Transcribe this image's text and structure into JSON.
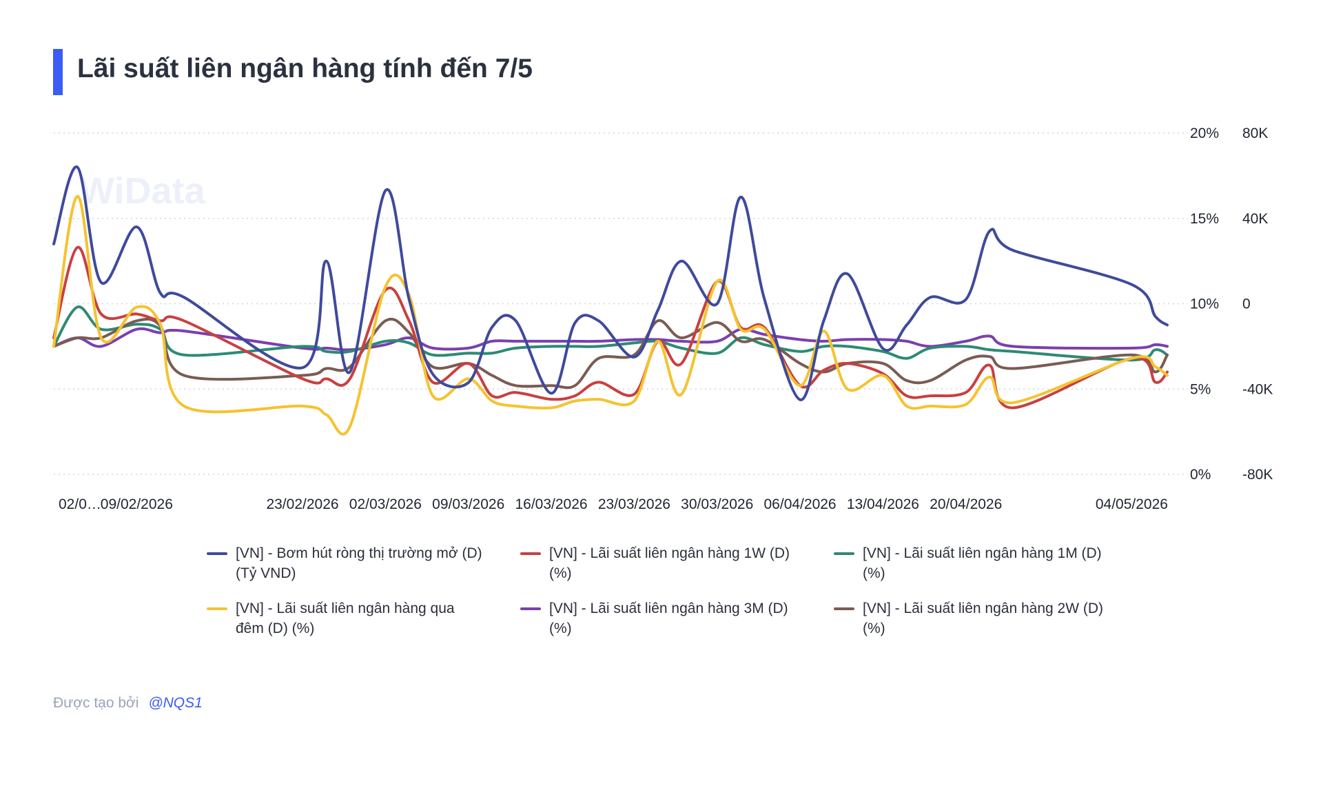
{
  "title": "Lãi suất liên ngân hàng tính đến 7/5",
  "watermark": "WiData",
  "footer": {
    "prefix": "Được tạo bởi",
    "author": "@NQS1"
  },
  "chart_data": {
    "type": "line",
    "x": [
      "02/02/2026",
      "04/02/2026",
      "06/02/2026",
      "09/02/2026",
      "11/02/2026",
      "13/02/2026",
      "23/02/2026",
      "25/02/2026",
      "27/02/2026",
      "02/03/2026",
      "04/03/2026",
      "06/03/2026",
      "09/03/2026",
      "11/03/2026",
      "13/03/2026",
      "16/03/2026",
      "18/03/2026",
      "20/03/2026",
      "23/03/2026",
      "25/03/2026",
      "27/03/2026",
      "30/03/2026",
      "01/04/2026",
      "03/04/2026",
      "06/04/2026",
      "08/04/2026",
      "10/04/2026",
      "13/04/2026",
      "15/04/2026",
      "17/04/2026",
      "20/04/2026",
      "22/04/2026",
      "24/04/2026",
      "04/05/2026",
      "06/05/2026",
      "07/05/2026"
    ],
    "x_tick_labels": [
      "02/0…",
      "09/02/2026",
      "23/02/2026",
      "02/03/2026",
      "09/03/2026",
      "16/03/2026",
      "23/03/2026",
      "30/03/2026",
      "06/04/2026",
      "13/04/2026",
      "20/04/2026",
      "04/05/2026"
    ],
    "x_tick_dates": [
      "02/02/2026",
      "09/02/2026",
      "23/02/2026",
      "02/03/2026",
      "09/03/2026",
      "16/03/2026",
      "23/03/2026",
      "30/03/2026",
      "06/04/2026",
      "13/04/2026",
      "20/04/2026",
      "04/05/2026"
    ],
    "y_left": {
      "ticks": [
        "20%",
        "15%",
        "10%",
        "5%",
        "0%"
      ],
      "range": [
        0,
        20
      ]
    },
    "y_right": {
      "ticks": [
        "80K",
        "40K",
        "0",
        "-40K",
        "-80K"
      ],
      "range": [
        -80000,
        80000
      ]
    },
    "grid": true,
    "legend_position": "bottom",
    "series": [
      {
        "name": "[VN] - Bơm hút ròng thị trường mở (D) (Tỷ VND)",
        "axis": "right",
        "color": "#3f4a9c",
        "values": [
          28000,
          64000,
          10000,
          36000,
          5000,
          3000,
          -30000,
          20000,
          -32000,
          53000,
          2000,
          -33000,
          -37000,
          -11000,
          -8000,
          -42000,
          -9000,
          -8000,
          -25000,
          -3000,
          20000,
          0,
          50000,
          2000,
          -45000,
          -8000,
          14000,
          -21000,
          -10000,
          3000,
          2000,
          34000,
          25000,
          9000,
          -6000,
          -10000
        ]
      },
      {
        "name": "[VN] - Lãi suất liên ngân hàng 1W (D) (%)",
        "axis": "left",
        "color": "#c94040",
        "values": [
          8.0,
          13.3,
          9.4,
          9.4,
          9.0,
          9.0,
          5.6,
          5.6,
          5.6,
          10.8,
          9.0,
          5.4,
          6.5,
          4.6,
          4.8,
          4.4,
          4.6,
          5.4,
          4.7,
          7.8,
          6.5,
          11.3,
          8.6,
          8.6,
          5.2,
          6.1,
          6.5,
          5.9,
          4.6,
          4.6,
          4.8,
          6.4,
          3.9,
          6.8,
          5.4,
          6.0
        ]
      },
      {
        "name": "[VN] - Lãi suất liên ngân hàng 1M (D) (%)",
        "axis": "left",
        "color": "#2d8a75",
        "values": [
          7.5,
          9.8,
          8.5,
          8.8,
          8.5,
          7.0,
          7.5,
          7.2,
          7.2,
          7.8,
          7.7,
          7.0,
          7.1,
          7.1,
          7.4,
          7.5,
          7.5,
          7.5,
          7.7,
          7.8,
          7.4,
          7.1,
          8.0,
          7.6,
          7.2,
          7.5,
          7.5,
          7.2,
          6.8,
          7.4,
          7.5,
          7.3,
          7.2,
          6.7,
          7.3,
          7.0
        ]
      },
      {
        "name": "[VN] - Lãi suất liên ngân hàng qua đêm (D) (%)",
        "axis": "left",
        "color": "#f5c330",
        "values": [
          7.5,
          16.3,
          8.0,
          9.8,
          8.8,
          4.0,
          4.0,
          3.5,
          2.8,
          11.0,
          10.5,
          4.6,
          5.6,
          4.3,
          4.0,
          3.9,
          4.3,
          4.4,
          4.3,
          7.8,
          4.7,
          11.3,
          8.5,
          8.5,
          5.2,
          8.4,
          5.0,
          5.8,
          4.0,
          4.0,
          4.1,
          5.7,
          4.2,
          6.8,
          6.3,
          5.8
        ]
      },
      {
        "name": "[VN] - Lãi suất liên ngân hàng 3M (D) (%)",
        "axis": "left",
        "color": "#7a3fb0",
        "values": [
          7.5,
          8.0,
          7.5,
          8.5,
          8.3,
          8.4,
          7.4,
          7.4,
          7.3,
          7.6,
          8.0,
          7.4,
          7.4,
          7.8,
          7.8,
          7.8,
          7.8,
          7.8,
          7.9,
          7.9,
          7.8,
          7.8,
          8.5,
          8.2,
          7.9,
          7.8,
          7.9,
          7.9,
          7.8,
          7.5,
          7.8,
          8.1,
          7.5,
          7.4,
          7.6,
          7.5
        ]
      },
      {
        "name": "[VN] - Lãi suất liên ngân hàng 2W (D) (%)",
        "axis": "left",
        "color": "#7a5c52",
        "values": [
          7.5,
          8.0,
          8.0,
          9.0,
          8.7,
          5.8,
          5.8,
          6.2,
          6.3,
          9.0,
          8.3,
          6.3,
          6.5,
          5.8,
          5.2,
          5.2,
          5.2,
          6.8,
          7.0,
          9.0,
          8.0,
          8.9,
          7.8,
          7.9,
          6.5,
          6.0,
          6.5,
          6.5,
          5.5,
          5.5,
          6.7,
          6.9,
          6.2,
          7.0,
          6.0,
          7.0
        ]
      }
    ]
  }
}
